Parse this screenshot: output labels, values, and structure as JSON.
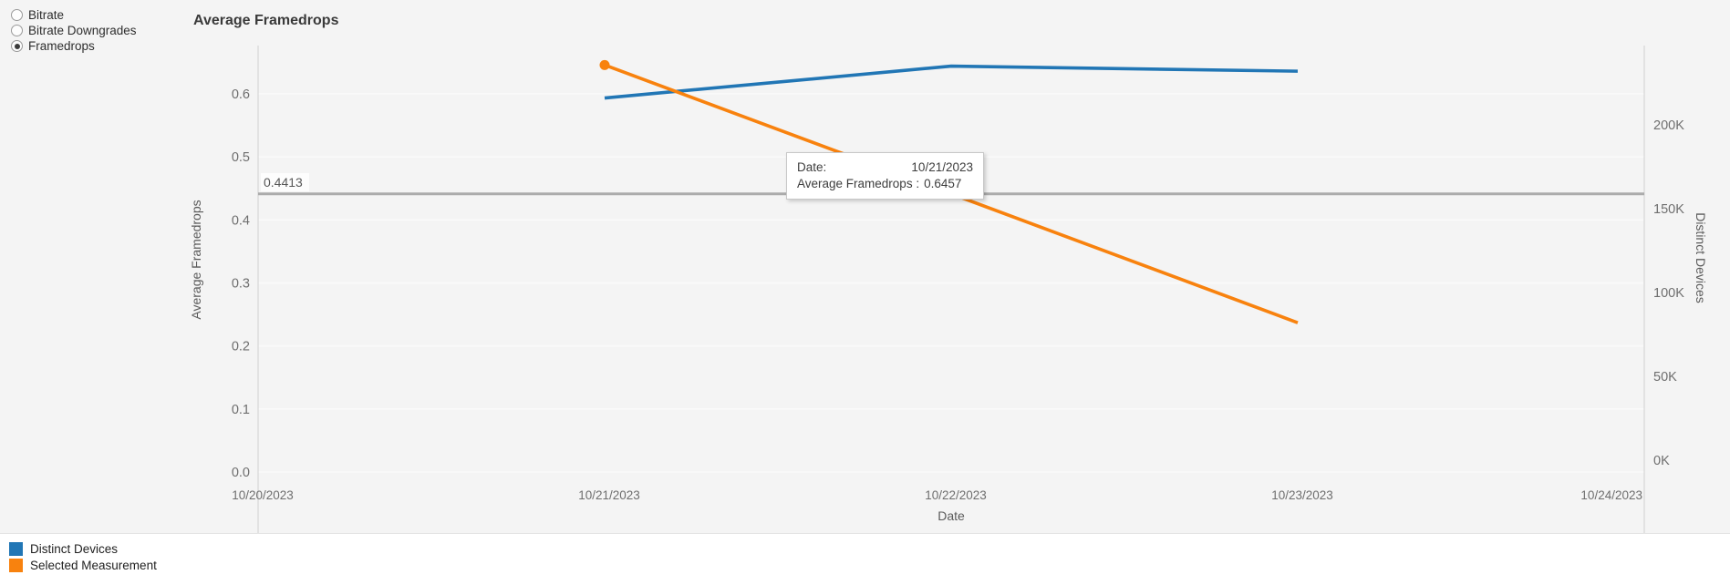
{
  "controls": {
    "measurement_options": [
      {
        "label": "Bitrate",
        "selected": false
      },
      {
        "label": "Bitrate Downgrades",
        "selected": false
      },
      {
        "label": "Framedrops",
        "selected": true
      }
    ]
  },
  "chart_data": {
    "type": "line",
    "title": "Average Framedrops",
    "xlabel": "Date",
    "x_ticks": [
      "10/20/2023",
      "10/21/2023",
      "10/22/2023",
      "10/23/2023",
      "10/24/2023"
    ],
    "left_axis": {
      "label": "Average Framedrops",
      "tick_labels": [
        "0.0",
        "0.1",
        "0.2",
        "0.3",
        "0.4",
        "0.5",
        "0.6"
      ],
      "tick_values": [
        0.0,
        0.1,
        0.2,
        0.3,
        0.4,
        0.5,
        0.6
      ],
      "range": [
        0.0,
        0.676
      ]
    },
    "right_axis": {
      "label": "Distinct Devices",
      "tick_labels": [
        "0K",
        "50K",
        "100K",
        "150K",
        "200K"
      ],
      "tick_values": [
        0,
        50000,
        100000,
        150000,
        200000
      ],
      "range": [
        0,
        247000
      ]
    },
    "series": [
      {
        "name": "Distinct Devices",
        "color": "#2176b5",
        "axis": "right",
        "points": [
          [
            "10/21/2023",
            216000
          ],
          [
            "10/22/2023",
            235000
          ],
          [
            "10/23/2023",
            232000
          ]
        ]
      },
      {
        "name": "Selected Measurement",
        "color": "#f8820e",
        "axis": "left",
        "points": [
          [
            "10/21/2023",
            0.6457
          ],
          [
            "10/23/2023",
            0.2369
          ]
        ]
      }
    ],
    "reference_line": {
      "value": 0.4413,
      "label": "0.4413"
    },
    "hover_point": {
      "series": 1,
      "point": 0
    },
    "grid": true,
    "legend_position": "bottom-left"
  },
  "tooltip": {
    "rows": [
      {
        "label": "Date:",
        "value": "10/21/2023"
      },
      {
        "label": "Average Framedrops :",
        "value": "0.6457"
      }
    ]
  },
  "legend": {
    "items": [
      {
        "label": "Distinct Devices",
        "color": "#2176b5"
      },
      {
        "label": "Selected Measurement",
        "color": "#f8820e"
      }
    ]
  },
  "colors": {
    "canvas_background": "#f4f4f4",
    "axis_line": "#cfcfcf",
    "gridline": "#fafafa",
    "reference_line": "#ababab",
    "tick_text": "#6e6e6e",
    "axis_title_text": "#5a5a5a"
  }
}
